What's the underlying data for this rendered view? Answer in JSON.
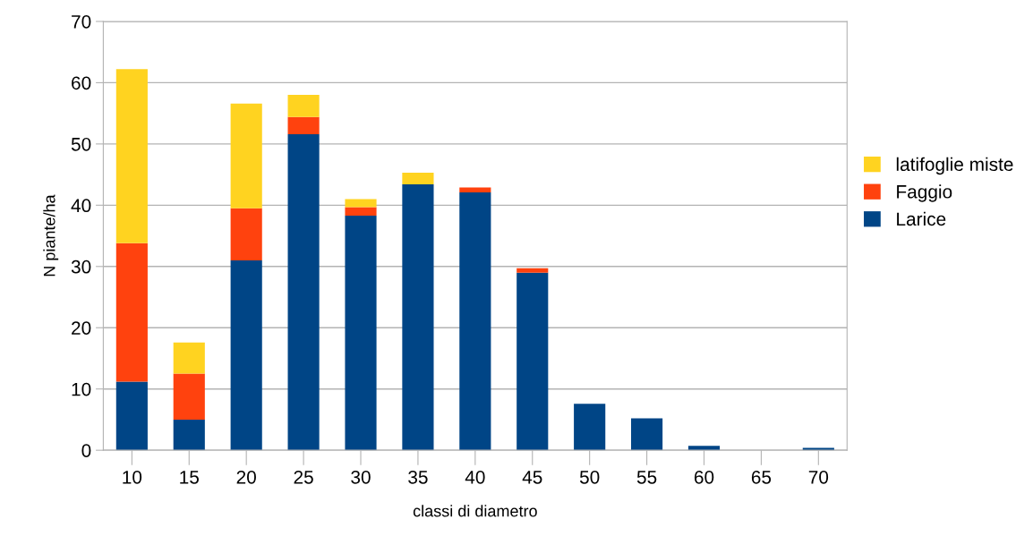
{
  "chart_data": {
    "type": "bar",
    "stacked": true,
    "xlabel": "classi di diametro",
    "ylabel": "N piante/ha",
    "categories": [
      "10",
      "15",
      "20",
      "25",
      "30",
      "35",
      "40",
      "45",
      "50",
      "55",
      "60",
      "65",
      "70"
    ],
    "series": [
      {
        "name": "Larice",
        "color": "#004586",
        "values": [
          11.2,
          5.0,
          31.0,
          51.6,
          38.3,
          43.4,
          42.1,
          29.0,
          7.6,
          5.2,
          0.7,
          0,
          0.4
        ]
      },
      {
        "name": "Faggio",
        "color": "#ff420e",
        "values": [
          22.6,
          7.5,
          8.5,
          2.8,
          1.4,
          0,
          0.8,
          0.7,
          0,
          0,
          0,
          0,
          0
        ]
      },
      {
        "name": "latifoglie miste",
        "color": "#ffd320",
        "values": [
          28.4,
          5.1,
          17.1,
          3.6,
          1.3,
          1.9,
          0,
          0,
          0,
          0,
          0,
          0,
          0
        ]
      }
    ],
    "ylim": [
      0,
      70
    ],
    "yticks": [
      0,
      10,
      20,
      30,
      40,
      50,
      60,
      70
    ],
    "grid": "y",
    "legend": "right"
  }
}
